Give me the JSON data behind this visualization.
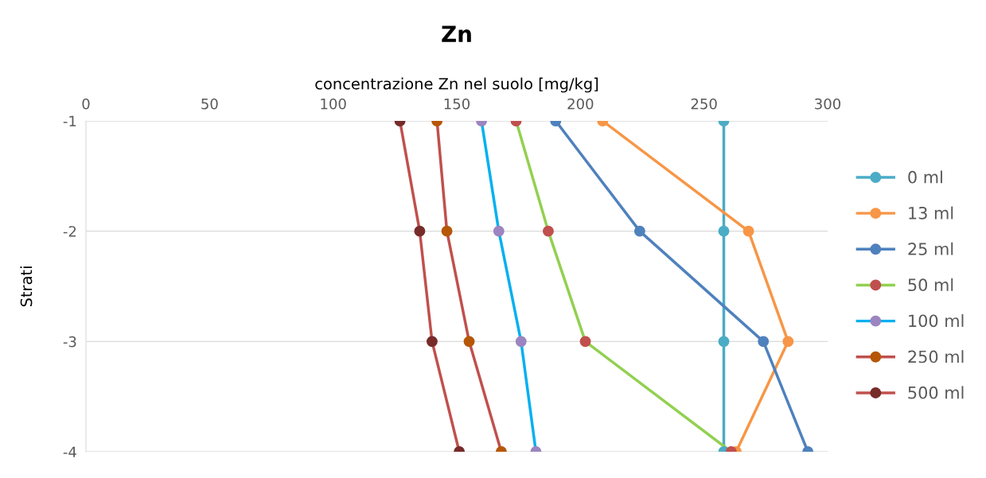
{
  "chart_data": {
    "type": "line",
    "title": "Zn",
    "xlabel": "concentrazione Zn nel suolo [mg/kg]",
    "ylabel": "Strati",
    "xlim": [
      0,
      300
    ],
    "xticks": [
      0,
      50,
      100,
      150,
      200,
      250,
      300
    ],
    "ylim": [
      -4,
      -1
    ],
    "yticks": [
      -1,
      -2,
      -3,
      -4
    ],
    "grid": "y",
    "legend": "right",
    "marker": "circle",
    "line_style": "solid",
    "series": [
      {
        "name": "0 ml",
        "color": "#4bacc6",
        "colors": [
          "#4bacc6",
          "#4bacc6",
          "#4bacc6",
          "#4bacc6"
        ],
        "x": [
          258,
          258,
          258,
          258
        ],
        "values": [
          -1,
          -2,
          -3,
          -4
        ]
      },
      {
        "name": "13 ml",
        "color": "#f79646",
        "colors": [
          "#f79646",
          "#f79646",
          "#f79646",
          "#f79646"
        ],
        "x": [
          209,
          268,
          284,
          263
        ],
        "values": [
          -1,
          -2,
          -3,
          -4
        ]
      },
      {
        "name": "25 ml",
        "color": "#4f81bd",
        "colors": [
          "#4f81bd",
          "#4f81bd",
          "#4f81bd",
          "#4f81bd"
        ],
        "x": [
          190,
          224,
          274,
          292
        ],
        "values": [
          -1,
          -2,
          -3,
          -4
        ]
      },
      {
        "name": "50 ml",
        "color": "#92d050",
        "colors": [
          "#c0504d",
          "#c0504d",
          "#c0504d",
          "#c0504d"
        ],
        "x": [
          174,
          187,
          202,
          261
        ],
        "values": [
          -1,
          -2,
          -3,
          -4
        ]
      },
      {
        "name": "100 ml",
        "color": "#00b0f0",
        "colors": [
          "#9c85c0",
          "#9c85c0",
          "#9c85c0",
          "#9c85c0"
        ],
        "x": [
          160,
          167,
          176,
          182
        ],
        "values": [
          -1,
          -2,
          -3,
          -4
        ]
      },
      {
        "name": "250 ml",
        "color": "#c0504d",
        "colors": [
          "#b65708",
          "#b65708",
          "#b65708",
          "#b65708"
        ],
        "x": [
          142,
          146,
          155,
          168
        ],
        "values": [
          -1,
          -2,
          -3,
          -4
        ]
      },
      {
        "name": "500 ml",
        "color": "#c0504d",
        "colors": [
          "#772c2a",
          "#772c2a",
          "#772c2a",
          "#772c2a"
        ],
        "x": [
          127,
          135,
          140,
          151
        ],
        "values": [
          -1,
          -2,
          -3,
          -4
        ]
      }
    ]
  }
}
